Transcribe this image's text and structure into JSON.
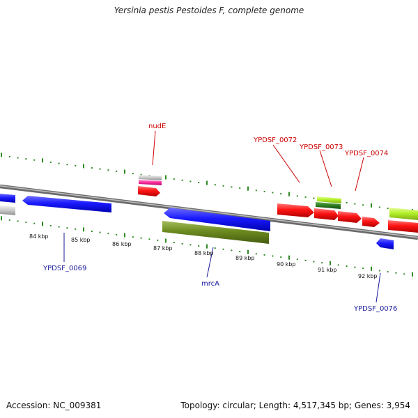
{
  "title": "Yersinia pestis Pestoides F, complete genome",
  "footer": {
    "accession": "Accession: NC_009381",
    "topology": "Topology: circular; Length: 4,517,345 bp; Genes: 3,954"
  },
  "colors": {
    "dots": "#2e8b22",
    "blue": "#1a1aff",
    "red": "#ff1414",
    "olive": "#6b8a1f",
    "lime": "#b4f02a",
    "gray": "#c8c8c8",
    "pink": "#ff30a0",
    "backbone": "#8a8a8a",
    "label_red": "#cc0000",
    "label_blue": "#1a1a99"
  },
  "scale_labels": [
    "84 kbp",
    "85 kbp",
    "86 kbp",
    "87 kbp",
    "88 kbp",
    "89 kbp",
    "90 kbp",
    "91 kbp",
    "92 kbp"
  ],
  "gene_labels": [
    {
      "name": "nudE",
      "color": "red"
    },
    {
      "name": "YPDSF_0072",
      "color": "red"
    },
    {
      "name": "YPDSF_0073",
      "color": "red"
    },
    {
      "name": "YPDSF_0074",
      "color": "red"
    },
    {
      "name": "YPDSF_0069",
      "color": "blue"
    },
    {
      "name": "mrcA",
      "color": "blue"
    },
    {
      "name": "YPDSF_0076",
      "color": "blue"
    }
  ]
}
